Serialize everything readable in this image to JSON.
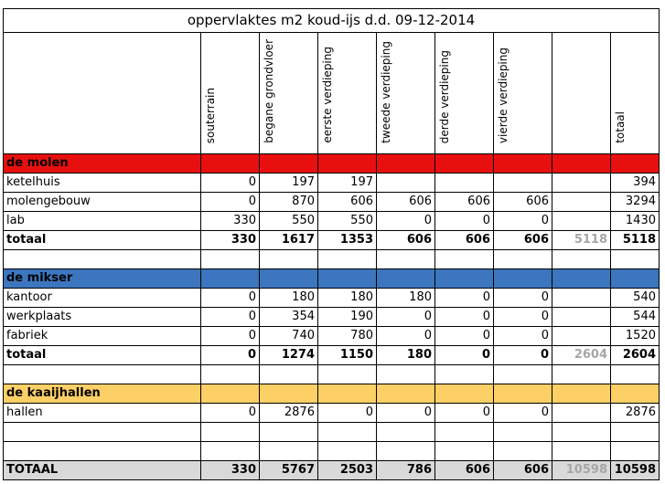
{
  "title": "oppervlaktes m2 koud-ijs d.d. 09-12-2014",
  "headers": [
    "souterrain",
    "begane grondvloer",
    "eerste verdieping",
    "tweede verdieping",
    "derde verdieping",
    "vierde verdieping",
    "",
    "totaal"
  ],
  "sections": [
    {
      "name": "de molen",
      "color": "#e80f0f",
      "rows": [
        {
          "label": "ketelhuis",
          "v": [
            "0",
            "197",
            "197",
            "",
            "",
            "",
            "",
            "394"
          ]
        },
        {
          "label": "molengebouw",
          "v": [
            "0",
            "870",
            "606",
            "606",
            "606",
            "606",
            "",
            "3294"
          ]
        },
        {
          "label": "lab",
          "v": [
            "330",
            "550",
            "550",
            "0",
            "0",
            "0",
            "",
            "1430"
          ]
        }
      ],
      "total": {
        "label": "totaal",
        "v": [
          "330",
          "1617",
          "1353",
          "606",
          "606",
          "606",
          "5118",
          "5118"
        ]
      }
    },
    {
      "name": "de mikser",
      "color": "#3b76bf",
      "rows": [
        {
          "label": "kantoor",
          "v": [
            "0",
            "180",
            "180",
            "180",
            "0",
            "0",
            "",
            "540"
          ]
        },
        {
          "label": "werkplaats",
          "v": [
            "0",
            "354",
            "190",
            "0",
            "0",
            "0",
            "",
            "544"
          ]
        },
        {
          "label": "fabriek",
          "v": [
            "0",
            "740",
            "780",
            "0",
            "0",
            "0",
            "",
            "1520"
          ]
        }
      ],
      "total": {
        "label": "totaal",
        "v": [
          "0",
          "1274",
          "1150",
          "180",
          "0",
          "0",
          "2604",
          "2604"
        ]
      }
    },
    {
      "name": "de kaaijhallen",
      "color": "#fcd066",
      "rows": [
        {
          "label": "hallen",
          "v": [
            "0",
            "2876",
            "0",
            "0",
            "0",
            "0",
            "",
            "2876"
          ]
        }
      ]
    }
  ],
  "grand_total": {
    "label": "TOTAAL",
    "v": [
      "330",
      "5767",
      "2503",
      "786",
      "606",
      "606",
      "10598",
      "10598"
    ]
  }
}
